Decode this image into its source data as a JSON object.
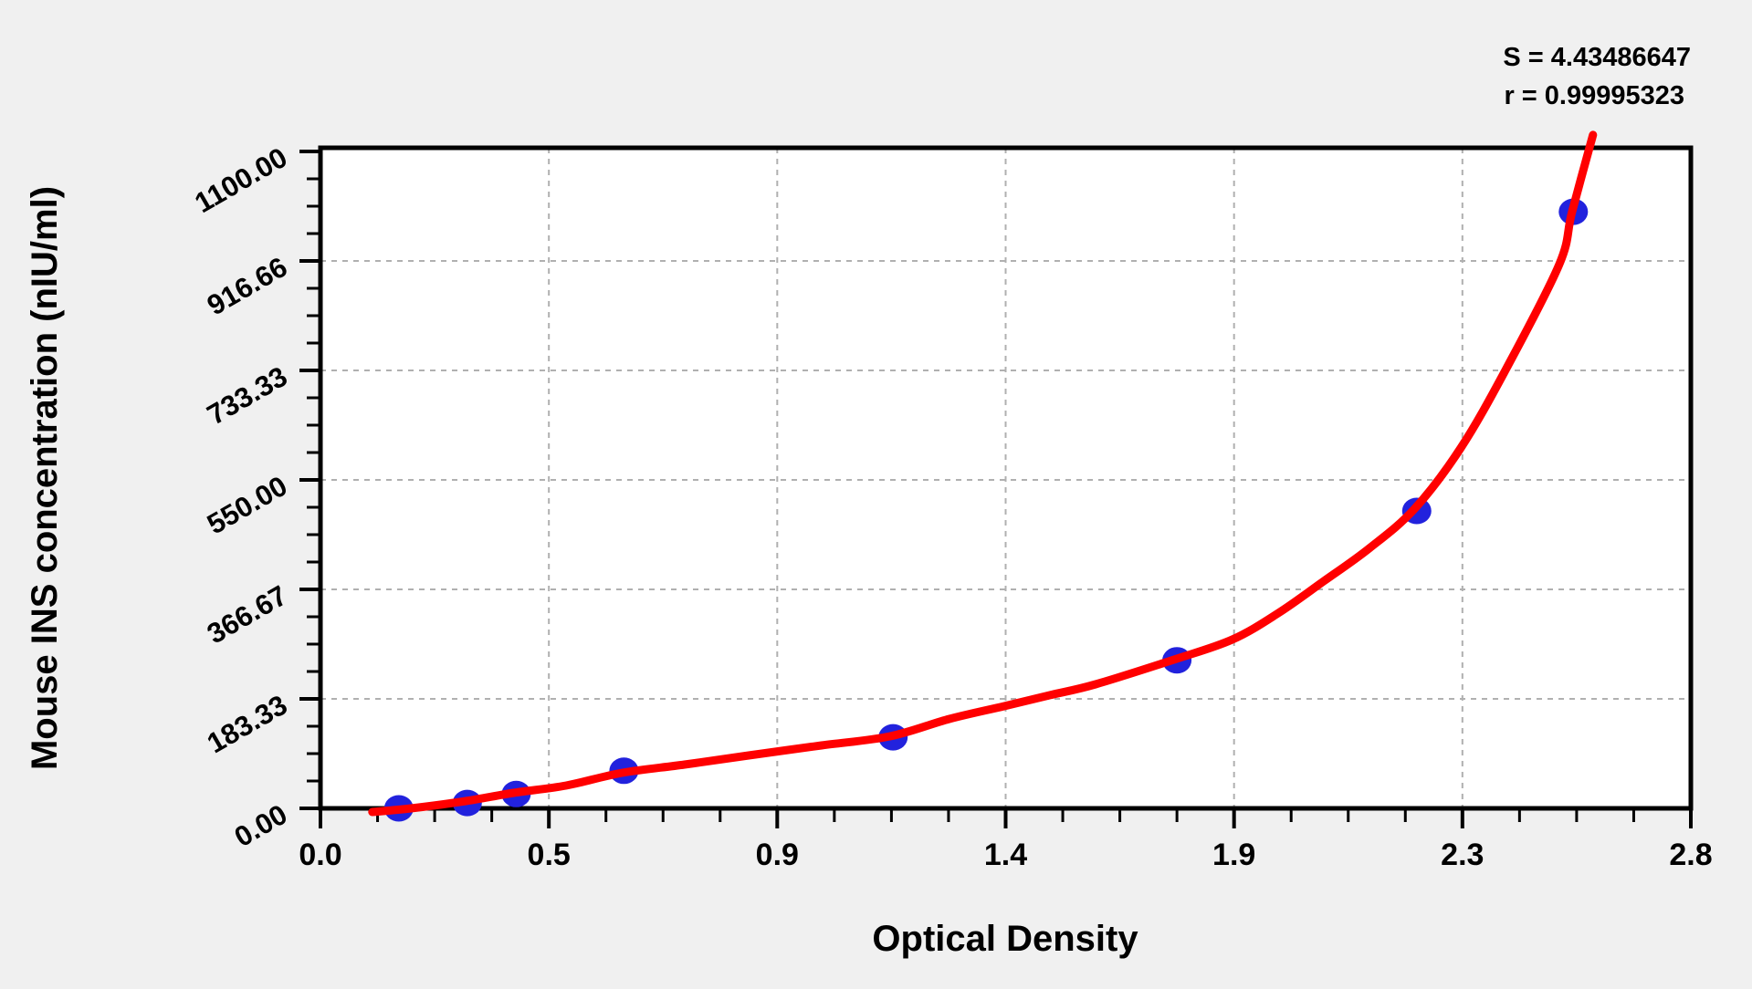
{
  "page": {
    "background": "#f0f0f0"
  },
  "chart_data": {
    "type": "scatter",
    "title": "",
    "xlabel": "Optical Density",
    "ylabel": "Mouse INS concentration (nIU/ml)",
    "xlim": [
      0,
      2.8
    ],
    "ylim": [
      0,
      1100
    ],
    "grid": "dashed gray lines at every major tick, both axes",
    "legend_position": "none",
    "x_tick_labels": [
      "0.0",
      "0.5",
      "0.9",
      "1.4",
      "1.9",
      "2.3",
      "2.8"
    ],
    "x_tick_values": [
      0,
      0.4667,
      0.9333,
      1.4,
      1.8667,
      2.3333,
      2.8
    ],
    "y_tick_labels": [
      "0.00",
      "183.33",
      "366.67",
      "550.00",
      "733.33",
      "916.66",
      "1100.00"
    ],
    "y_tick_values": [
      0,
      183.33,
      366.67,
      550.0,
      733.33,
      916.66,
      1100.0
    ],
    "minor_divisions_per_major": 4,
    "stats": {
      "s_text": "S = 4.43486647",
      "r_text": "r = 0.99995323",
      "S": "4.43486647",
      "r": "0.99995323"
    },
    "series": [
      {
        "name": "standard-points",
        "type": "scatter",
        "color": "#2222dd",
        "points": [
          [
            0.16,
            0
          ],
          [
            0.3,
            9
          ],
          [
            0.4,
            24
          ],
          [
            0.62,
            63
          ],
          [
            1.17,
            119
          ],
          [
            1.75,
            248
          ],
          [
            2.24,
            498
          ],
          [
            2.56,
            999
          ]
        ]
      },
      {
        "name": "fit-curve",
        "type": "line",
        "color": "#ff0000",
        "points": [
          [
            0.106,
            -6.1
          ],
          [
            0.185,
            0.0
          ],
          [
            0.297,
            12.2
          ],
          [
            0.395,
            26.0
          ],
          [
            0.502,
            38.2
          ],
          [
            0.617,
            59.6
          ],
          [
            0.744,
            73.3
          ],
          [
            0.875,
            88.6
          ],
          [
            1.024,
            105.4
          ],
          [
            1.164,
            120.7
          ],
          [
            1.285,
            149.7
          ],
          [
            1.397,
            171.1
          ],
          [
            1.49,
            189.4
          ],
          [
            1.584,
            207.8
          ],
          [
            1.744,
            249.1
          ],
          [
            1.863,
            282.6
          ],
          [
            1.957,
            326.9
          ],
          [
            2.05,
            380.4
          ],
          [
            2.143,
            435.4
          ],
          [
            2.235,
            501.1
          ],
          [
            2.33,
            603.5
          ],
          [
            2.423,
            736.4
          ],
          [
            2.531,
            910.6
          ],
          [
            2.557,
            997.7
          ],
          [
            2.6,
            1127.6
          ]
        ]
      }
    ],
    "style": {
      "plot_background": "#ffffff",
      "frame_color": "#000000",
      "grid_color": "#b0b0b0",
      "point_color": "#2222dd",
      "curve_color": "#ff0000"
    }
  }
}
